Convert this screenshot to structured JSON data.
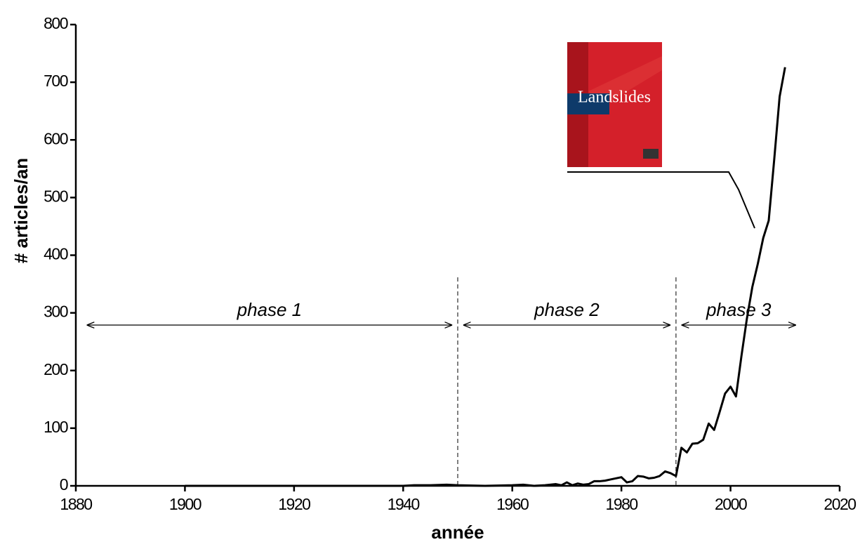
{
  "chart_data": {
    "type": "line",
    "x_label": "année",
    "y_label": "# articles/an",
    "x": [
      1900,
      1940,
      1942,
      1945,
      1948,
      1950,
      1955,
      1960,
      1962,
      1964,
      1966,
      1968,
      1969,
      1970,
      1971,
      1972,
      1973,
      1974,
      1975,
      1976,
      1977,
      1978,
      1979,
      1980,
      1981,
      1982,
      1983,
      1984,
      1985,
      1986,
      1987,
      1988,
      1989,
      1990,
      1991,
      1992,
      1993,
      1994,
      1995,
      1996,
      1997,
      1998,
      1999,
      2000,
      2001,
      2002,
      2003,
      2004,
      2005,
      2006,
      2007,
      2008,
      2009,
      2010
    ],
    "values": [
      0,
      0,
      1,
      1,
      2,
      1,
      0,
      1,
      2,
      0,
      1,
      3,
      1,
      6,
      1,
      4,
      2,
      3,
      8,
      8,
      9,
      11,
      13,
      15,
      6,
      8,
      17,
      16,
      13,
      14,
      17,
      25,
      22,
      17,
      66,
      58,
      73,
      74,
      80,
      108,
      97,
      128,
      160,
      172,
      155,
      225,
      290,
      345,
      385,
      430,
      460,
      565,
      675,
      726
    ],
    "color": "#000000",
    "xlim": [
      1880,
      2020
    ],
    "xticks": [
      1880,
      1900,
      1920,
      1940,
      1960,
      1980,
      2000,
      2020
    ],
    "ylim": [
      0,
      800
    ],
    "yticks": [
      0,
      100,
      200,
      300,
      400,
      500,
      600,
      700,
      800
    ],
    "dividers": [
      1950,
      1990
    ],
    "phases": [
      {
        "label": "phase 1",
        "start": 1882,
        "end": 1949
      },
      {
        "label": "phase 2",
        "start": 1951,
        "end": 1989
      },
      {
        "label": "phase 3",
        "start": 1991,
        "end": 2012
      }
    ],
    "inset_title": "Landslides"
  }
}
